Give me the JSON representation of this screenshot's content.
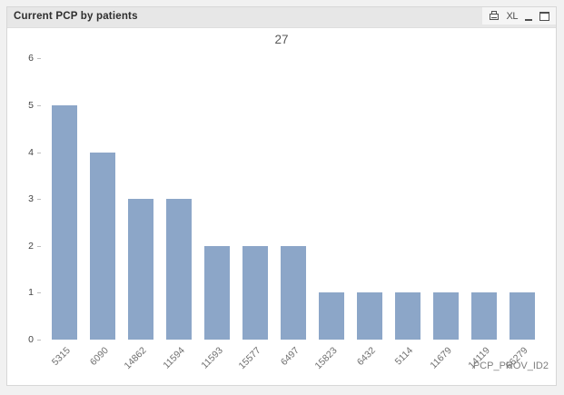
{
  "window": {
    "title": "Current PCP by patients",
    "icons": {
      "names": [
        "print-icon",
        "send-to-excel-icon",
        "minimize-icon",
        "maximize-icon"
      ],
      "excel_label": "XL"
    }
  },
  "chart_data": {
    "type": "bar",
    "total_label": "27",
    "categories": [
      "5315",
      "6090",
      "14862",
      "11594",
      "11593",
      "15577",
      "6497",
      "15823",
      "6432",
      "5114",
      "11679",
      "14119",
      "66279"
    ],
    "values": [
      5,
      4,
      3,
      3,
      2,
      2,
      2,
      1,
      1,
      1,
      1,
      1,
      1
    ],
    "xlabel": "PCP_PROV_ID2",
    "ylabel": "",
    "ylim": [
      0,
      6
    ],
    "yticks": [
      0,
      1,
      2,
      3,
      4,
      5,
      6
    ],
    "bar_color": "#8ca6c8",
    "grid": false,
    "legend": "none"
  }
}
